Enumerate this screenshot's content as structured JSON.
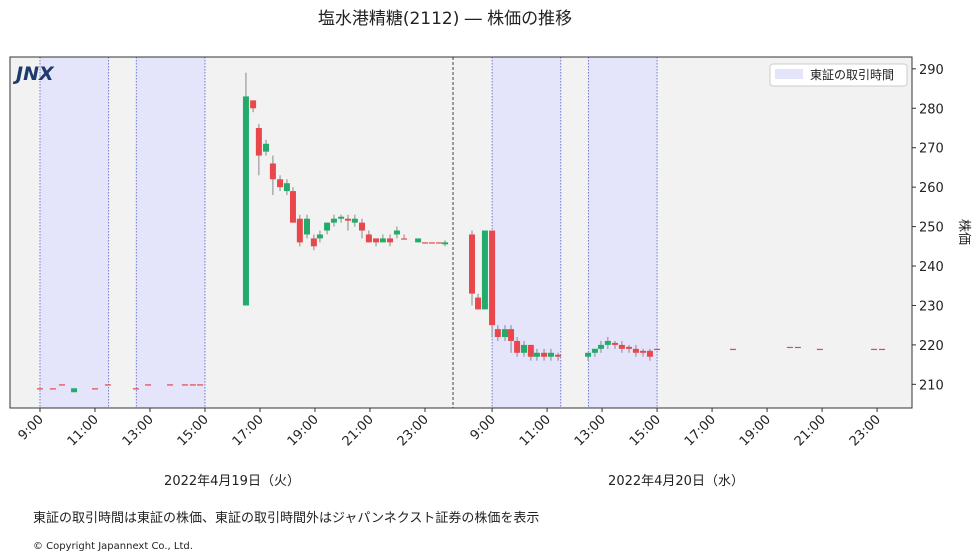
{
  "chart_data": {
    "type": "candlestick",
    "title": "塩水港精糖(2112) ― 株価の推移",
    "logo": "JNX",
    "y_label": "株価",
    "session_label": "東証の取引時間",
    "date_labels": [
      "2022年4月19日（火）",
      "2022年4月20日（水）"
    ],
    "note": "東証の取引時間は東証の株価、東証の取引時間外はジャパンネクスト証券の株価を表示",
    "copyright": "© Copyright  Japannext Co., Ltd.",
    "up_color": "#22ab6a",
    "down_color": "#e8474c",
    "session_color": "#e4e4fb",
    "legend": "upper right",
    "sessions": [
      [
        9,
        11.5
      ],
      [
        12.5,
        15
      ],
      [
        25.44,
        27.94
      ],
      [
        28.94,
        31.44
      ]
    ],
    "day_break": 24.02,
    "xlim": [
      7.91,
      40.71
    ],
    "ylim": [
      204,
      293
    ],
    "yticks": [
      210,
      220,
      230,
      240,
      250,
      260,
      270,
      280,
      290
    ],
    "xticks": [
      {
        "value": 9,
        "label": "9:00"
      },
      {
        "value": 11,
        "label": "11:00"
      },
      {
        "value": 13,
        "label": "13:00"
      },
      {
        "value": 15,
        "label": "15:00"
      },
      {
        "value": 17,
        "label": "17:00"
      },
      {
        "value": 19,
        "label": "19:00"
      },
      {
        "value": 21,
        "label": "21:00"
      },
      {
        "value": 23,
        "label": "23:00"
      },
      {
        "value": 25.44,
        "label": "9:00"
      },
      {
        "value": 27.44,
        "label": "11:00"
      },
      {
        "value": 29.44,
        "label": "13:00"
      },
      {
        "value": 31.44,
        "label": "15:00"
      },
      {
        "value": 33.44,
        "label": "17:00"
      },
      {
        "value": 35.44,
        "label": "19:00"
      },
      {
        "value": 37.44,
        "label": "21:00"
      },
      {
        "value": 39.44,
        "label": "23:00"
      }
    ],
    "x": [
      9.0,
      9.47,
      9.8,
      10.24,
      11.0,
      11.47,
      12.49,
      12.93,
      13.73,
      14.27,
      14.56,
      14.82,
      16.49,
      16.75,
      16.96,
      17.22,
      17.47,
      17.73,
      17.98,
      18.2,
      18.45,
      18.71,
      18.96,
      19.18,
      19.44,
      19.69,
      19.95,
      20.2,
      20.45,
      20.71,
      20.96,
      21.22,
      21.47,
      21.73,
      21.98,
      22.24,
      22.75,
      23.0,
      23.25,
      23.51,
      23.73,
      24.71,
      24.93,
      25.18,
      25.44,
      25.65,
      25.91,
      26.13,
      26.35,
      26.6,
      26.85,
      27.07,
      27.33,
      27.58,
      27.84,
      28.93,
      29.18,
      29.4,
      29.65,
      29.91,
      30.16,
      30.42,
      30.67,
      30.93,
      31.18,
      31.44,
      34.2,
      36.27,
      36.56,
      37.36,
      39.33,
      39.62
    ],
    "open": [
      209,
      209,
      210,
      208,
      209,
      210,
      209,
      210,
      210,
      210,
      210,
      210,
      230,
      282,
      275,
      269,
      266,
      262,
      259,
      259,
      252,
      248,
      247,
      247,
      249,
      251,
      252,
      252,
      251,
      251,
      248,
      247,
      246,
      247,
      248,
      247,
      246,
      246,
      246,
      246,
      245.5,
      248,
      232,
      229,
      249,
      224,
      222,
      224,
      221,
      218,
      220,
      217,
      218,
      217,
      217.5,
      217,
      218,
      219,
      220,
      220.5,
      220,
      219.5,
      219,
      218.5,
      218.5,
      219,
      219,
      219.5,
      219.5,
      219,
      219,
      219
    ],
    "high": [
      209,
      209,
      210,
      209,
      209,
      210,
      209,
      210,
      210,
      210,
      210,
      210,
      289,
      282,
      276,
      272,
      268,
      263,
      262,
      260,
      253,
      253,
      248,
      249,
      251,
      253,
      253,
      253,
      253,
      252,
      249,
      247,
      248,
      248,
      250,
      248,
      247,
      246,
      246,
      246,
      246.5,
      249,
      233,
      249,
      249,
      225,
      225,
      225,
      222,
      221,
      220,
      219,
      219,
      219,
      218,
      218,
      219,
      221,
      222,
      221,
      221,
      220,
      220,
      219,
      219,
      219,
      219,
      219.5,
      219.5,
      219,
      219,
      219
    ],
    "low": [
      209,
      209,
      210,
      208,
      209,
      210,
      209,
      210,
      210,
      210,
      210,
      210,
      230,
      279,
      263,
      268,
      258,
      259,
      258,
      251,
      245,
      247,
      244,
      246,
      248,
      250,
      251,
      249,
      250,
      247,
      246,
      245,
      246,
      245,
      247,
      247,
      246,
      246,
      246,
      246,
      245,
      230,
      229,
      229,
      222,
      221,
      221,
      218,
      217,
      217,
      216,
      216,
      216,
      216,
      216,
      216,
      217,
      218,
      219,
      219,
      218,
      218,
      217,
      217,
      216,
      219,
      219,
      219.5,
      219.5,
      219,
      219,
      219
    ],
    "close": [
      209,
      209,
      210,
      209,
      209,
      210,
      209,
      210,
      210,
      210,
      210,
      210,
      283,
      280,
      268,
      271,
      262,
      260,
      261,
      251,
      246,
      252,
      245,
      248,
      251,
      252,
      252.5,
      251.5,
      252,
      249,
      246,
      246,
      247,
      246,
      249,
      247,
      247,
      246,
      246,
      246,
      246,
      233,
      229,
      249,
      225,
      222,
      224,
      221,
      218,
      220,
      217,
      218,
      217,
      218,
      217,
      218,
      219,
      220,
      221,
      220,
      219,
      219,
      218,
      218,
      217,
      219,
      219,
      219.5,
      219.5,
      219,
      219,
      219
    ]
  }
}
